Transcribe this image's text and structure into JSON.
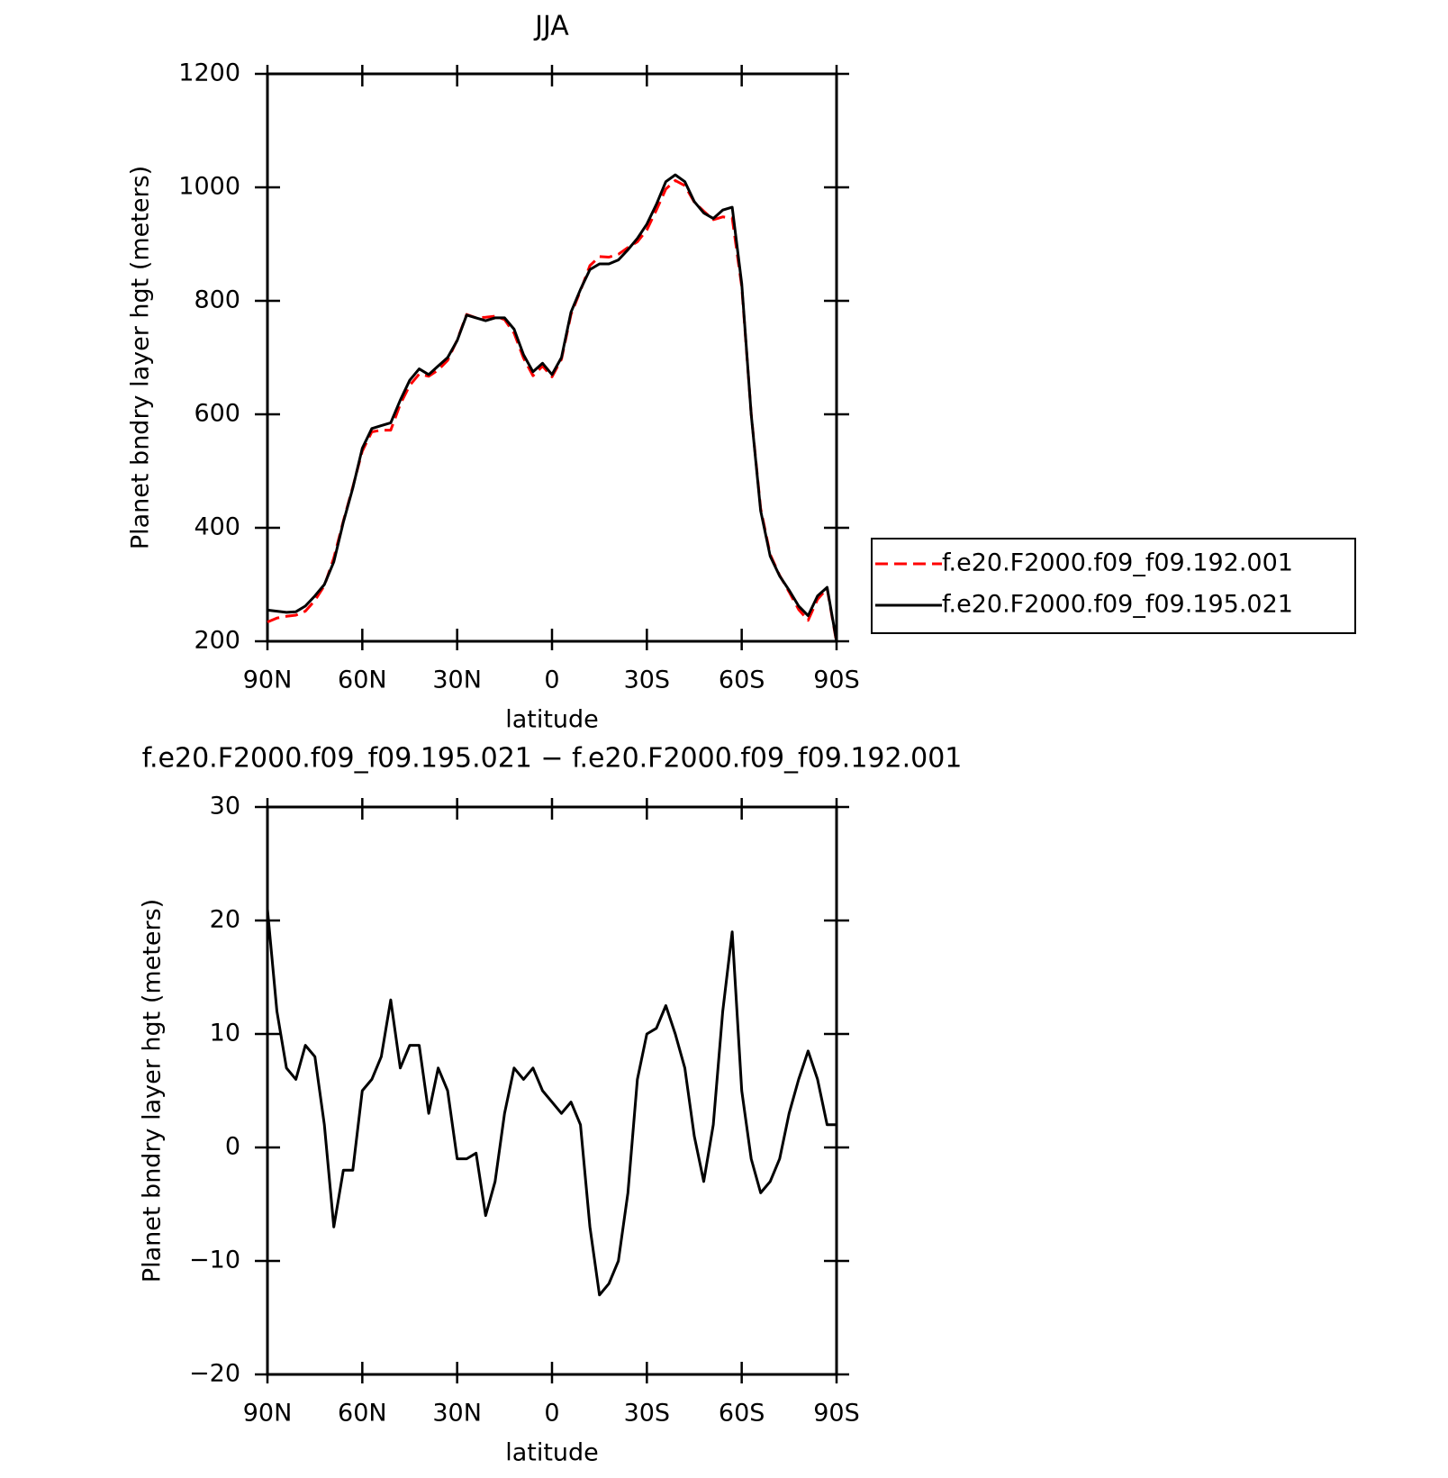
{
  "chart_data": [
    {
      "type": "line",
      "title": "JJA",
      "x_label": "latitude",
      "y_label": "Planet bndry layer hgt (meters)",
      "x": [
        90,
        87,
        84,
        81,
        78,
        75,
        72,
        69,
        66,
        63,
        60,
        57,
        54,
        51,
        48,
        45,
        42,
        39,
        36,
        33,
        30,
        27,
        24,
        21,
        18,
        15,
        12,
        9,
        6,
        3,
        0,
        -3,
        -6,
        -9,
        -12,
        -15,
        -18,
        -21,
        -24,
        -27,
        -30,
        -33,
        -36,
        -39,
        -42,
        -45,
        -48,
        -51,
        -54,
        -57,
        -60,
        -63,
        -66,
        -69,
        -72,
        -75,
        -78,
        -81,
        -84,
        -87,
        -90
      ],
      "xlim": [
        90,
        -90
      ],
      "xticks": [
        {
          "value": 90,
          "label": "90N"
        },
        {
          "value": 60,
          "label": "60N"
        },
        {
          "value": 30,
          "label": "30N"
        },
        0,
        {
          "value": -30,
          "label": "30S"
        },
        {
          "value": -60,
          "label": "60S"
        },
        {
          "value": -90,
          "label": "90S"
        }
      ],
      "ylim": [
        200,
        1200
      ],
      "yticks": [
        200,
        400,
        600,
        800,
        1000,
        1200
      ],
      "legend": "right",
      "series": [
        {
          "name": "f.e20.F2000.f09_f09.192.001",
          "color": "#ff0000",
          "dashed": true,
          "values": [
            234,
            241,
            244,
            246,
            253,
            272,
            298,
            347,
            412,
            472,
            535,
            569,
            572,
            572,
            618,
            651,
            671,
            667,
            678,
            695,
            731,
            776,
            770,
            771,
            773,
            767,
            743,
            699,
            668,
            685,
            666,
            697,
            776,
            818,
            862,
            878,
            877,
            882,
            894,
            904,
            925,
            960,
            997,
            1012,
            1003,
            974,
            958,
            943,
            948,
            946,
            825,
            601,
            434,
            353,
            316,
            287,
            256,
            237,
            274,
            293,
            198
          ]
        },
        {
          "name": "f.e20.F2000.f09_f09.195.021",
          "color": "#000000",
          "dashed": false,
          "values": [
            255,
            253,
            251,
            252,
            262,
            280,
            300,
            340,
            410,
            470,
            540,
            575,
            580,
            585,
            625,
            660,
            680,
            670,
            685,
            700,
            730,
            775,
            770,
            765,
            770,
            770,
            750,
            705,
            675,
            690,
            670,
            700,
            780,
            820,
            855,
            865,
            865,
            872,
            890,
            910,
            935,
            970,
            1010,
            1022,
            1010,
            975,
            955,
            945,
            960,
            965,
            830,
            600,
            430,
            350,
            315,
            290,
            262,
            245,
            280,
            295,
            200
          ]
        }
      ]
    },
    {
      "type": "line",
      "title": "f.e20.F2000.f09_f09.195.021 − f.e20.F2000.f09_f09.192.001",
      "x_label": "latitude",
      "y_label": "Planet bndry layer hgt (meters)",
      "x": [
        90,
        87,
        84,
        81,
        78,
        75,
        72,
        69,
        66,
        63,
        60,
        57,
        54,
        51,
        48,
        45,
        42,
        39,
        36,
        33,
        30,
        27,
        24,
        21,
        18,
        15,
        12,
        9,
        6,
        3,
        0,
        -3,
        -6,
        -9,
        -12,
        -15,
        -18,
        -21,
        -24,
        -27,
        -30,
        -33,
        -36,
        -39,
        -42,
        -45,
        -48,
        -51,
        -54,
        -57,
        -60,
        -63,
        -66,
        -69,
        -72,
        -75,
        -78,
        -81,
        -84,
        -87,
        -90
      ],
      "xlim": [
        90,
        -90
      ],
      "xticks": [
        {
          "value": 90,
          "label": "90N"
        },
        {
          "value": 60,
          "label": "60N"
        },
        {
          "value": 30,
          "label": "30N"
        },
        0,
        {
          "value": -30,
          "label": "30S"
        },
        {
          "value": -60,
          "label": "60S"
        },
        {
          "value": -90,
          "label": "90S"
        }
      ],
      "ylim": [
        -20,
        30
      ],
      "yticks": [
        {
          "value": -20,
          "label": "−20"
        },
        {
          "value": -10,
          "label": "−10"
        },
        0,
        10,
        20,
        30
      ],
      "color": "#000000",
      "values": [
        21,
        12,
        7,
        6,
        9,
        8,
        2,
        -7,
        -2,
        -2,
        5,
        6,
        8,
        13,
        7,
        9,
        9,
        3,
        7,
        5,
        -1,
        -1,
        -0.5,
        -6,
        -3,
        3,
        7,
        6,
        7,
        5,
        4,
        3,
        4,
        2,
        -7,
        -13,
        -12,
        -10,
        -4,
        6,
        10,
        10.5,
        12.5,
        10,
        7,
        1,
        -3,
        2,
        12,
        19,
        5,
        -1,
        -4,
        -3,
        -1,
        3,
        6,
        8.5,
        6,
        2,
        2
      ]
    }
  ]
}
